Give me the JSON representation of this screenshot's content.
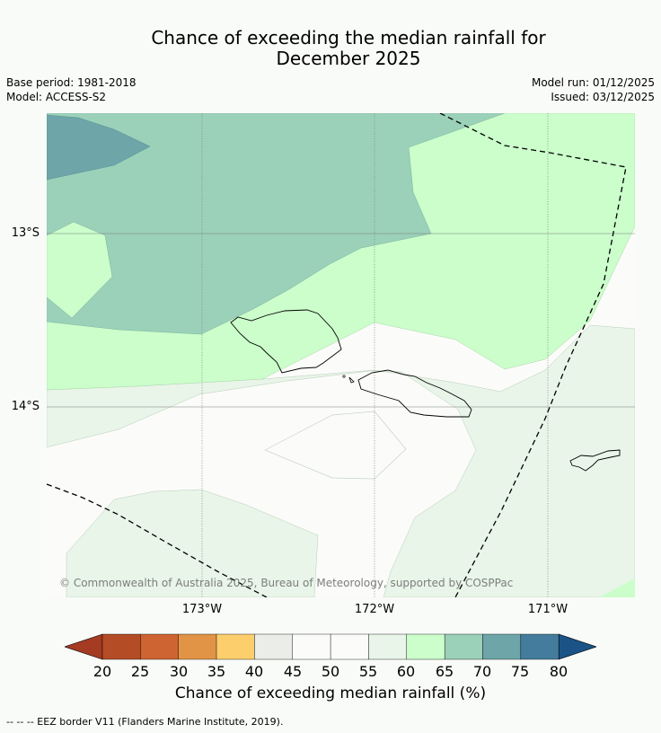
{
  "title_line1": "Chance of exceeding the median rainfall for",
  "title_line2": "December 2025",
  "base_period": "Base period: 1981-2018",
  "model": "Model: ACCESS-S2",
  "model_run": "Model run: 01/12/2025",
  "issued": "Issued: 03/12/2025",
  "lat_labels": [
    "13°S",
    "14°S"
  ],
  "lon_labels": [
    "173°W",
    "172°W",
    "171°W"
  ],
  "copyright": "© Commonwealth of Australia 2025, Bureau of Meteorology, supported by COSPPac",
  "colorbar": {
    "label": "Chance of exceeding median rainfall (%)",
    "ticks": [
      "20",
      "25",
      "30",
      "35",
      "40",
      "45",
      "50",
      "55",
      "60",
      "65",
      "70",
      "75",
      "80"
    ],
    "colors": {
      "below20": "#a43b22",
      "20-25": "#b44c26",
      "25-30": "#cd6431",
      "30-35": "#e29446",
      "35-40": "#fdcf6c",
      "40-45": "#eaede8",
      "45-50": "#fbfcfa",
      "50-55": "#fbfcfa",
      "55-60": "#e8f5e8",
      "60-65": "#cbfecb",
      "65-70": "#9bd1b9",
      "70-75": "#6da5a8",
      "75-80": "#437c9c",
      "above80": "#1b5387"
    }
  },
  "footnote": "--  --  -- EEZ border V11 (Flanders Marine Institute, 2019)."
}
